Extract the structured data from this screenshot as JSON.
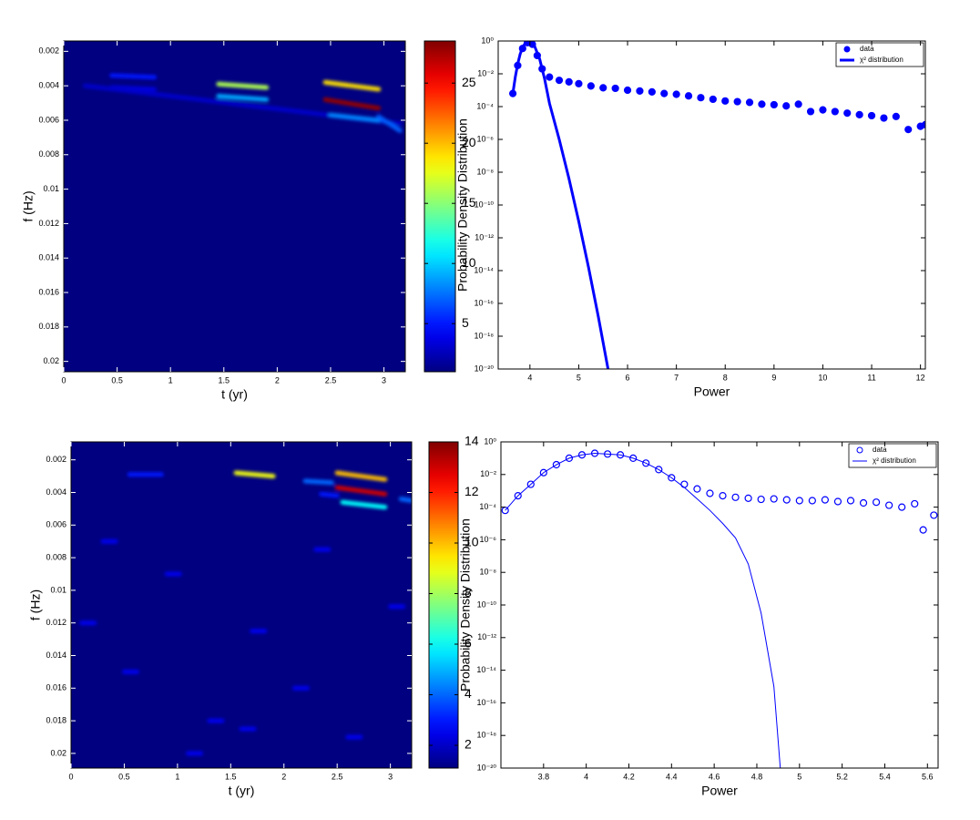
{
  "chart_data": [
    {
      "type": "heatmap",
      "xlabel": "t (yr)",
      "ylabel": "f (Hz)",
      "xlim": [
        0,
        3.2
      ],
      "xticks": [
        0,
        0.5,
        1,
        1.5,
        2,
        2.5,
        3
      ],
      "ylim": [
        0.0014,
        0.0206
      ],
      "y_reversed": true,
      "yticks": [
        0.002,
        0.004,
        0.006,
        0.008,
        0.01,
        0.012,
        0.014,
        0.016,
        0.018,
        0.02
      ],
      "colormap": "jet",
      "clim": [
        1,
        28.5
      ],
      "cticks": [
        5,
        10,
        15,
        20,
        25
      ],
      "streaks": [
        {
          "x": [
            0.45,
            0.85
          ],
          "y": [
            0.0034,
            0.0035
          ],
          "value": 5
        },
        {
          "x": [
            0.45,
            0.85
          ],
          "y": [
            0.0041,
            0.0042
          ],
          "value": 3.5
        },
        {
          "x": [
            0.2,
            3.15
          ],
          "y": [
            0.004,
            0.0062
          ],
          "value": 3
        },
        {
          "x": [
            1.45,
            1.9
          ],
          "y": [
            0.0039,
            0.0041
          ],
          "value": 16
        },
        {
          "x": [
            1.45,
            1.9
          ],
          "y": [
            0.0046,
            0.0048
          ],
          "value": 9
        },
        {
          "x": [
            2.45,
            2.95
          ],
          "y": [
            0.0038,
            0.0042
          ],
          "value": 19
        },
        {
          "x": [
            2.45,
            2.95
          ],
          "y": [
            0.0048,
            0.0053
          ],
          "value": 28
        },
        {
          "x": [
            2.5,
            2.95
          ],
          "y": [
            0.0057,
            0.006
          ],
          "value": 8
        },
        {
          "x": [
            2.95,
            3.15
          ],
          "y": [
            0.0058,
            0.0066
          ],
          "value": 7
        }
      ]
    },
    {
      "type": "line",
      "xlabel": "Power",
      "ylabel": "Probability Density Distribution",
      "xlim": [
        3.35,
        12.1
      ],
      "xticks": [
        4,
        5,
        6,
        7,
        8,
        9,
        10,
        11,
        12
      ],
      "log_y": true,
      "ylim": [
        1e-20,
        1
      ],
      "yticks": [
        {
          "value": 1,
          "label": "10⁰"
        },
        {
          "value": 0.01,
          "label": "10⁻²"
        },
        {
          "value": 0.0001,
          "label": "10⁻⁴"
        },
        {
          "value": 1e-06,
          "label": "10⁻⁶"
        },
        {
          "value": 1e-08,
          "label": "10⁻⁸"
        },
        {
          "value": 1e-10,
          "label": "10⁻¹⁰"
        },
        {
          "value": 1e-12,
          "label": "10⁻¹²"
        },
        {
          "value": 1e-14,
          "label": "10⁻¹⁴"
        },
        {
          "value": 1e-16,
          "label": "10⁻¹⁶"
        },
        {
          "value": 1e-18,
          "label": "10⁻¹⁸"
        },
        {
          "value": 1e-20,
          "label": "10⁻²⁰"
        }
      ],
      "legend": "upper right",
      "series": [
        {
          "name": "data",
          "color": "#0000ff",
          "marker": "filled-circle",
          "line_width": 0,
          "x": [
            3.65,
            3.75,
            3.85,
            3.95,
            4.0,
            4.05,
            4.15,
            4.25,
            4.4,
            4.6,
            4.8,
            5.0,
            5.25,
            5.5,
            5.75,
            6.0,
            6.25,
            6.5,
            6.75,
            7.0,
            7.25,
            7.5,
            7.75,
            8.0,
            8.25,
            8.5,
            8.75,
            9.0,
            9.25,
            9.5,
            9.75,
            10.0,
            10.25,
            10.5,
            10.75,
            11.0,
            11.25,
            11.5,
            11.75,
            12.0,
            12.1
          ],
          "values": [
            0.00063,
            0.032,
            0.35,
            0.79,
            0.89,
            0.63,
            0.13,
            0.02,
            0.0063,
            0.004,
            0.0032,
            0.0025,
            0.0018,
            0.0014,
            0.0013,
            0.001,
            0.00089,
            0.00079,
            0.00063,
            0.00056,
            0.00045,
            0.00035,
            0.00028,
            0.00022,
            0.0002,
            0.00018,
            0.00014,
            0.00013,
            0.00011,
            0.00014,
            5e-05,
            6.3e-05,
            5e-05,
            4e-05,
            3.2e-05,
            2.8e-05,
            2e-05,
            2.5e-05,
            4e-06,
            6.3e-06,
            7.9e-06
          ]
        },
        {
          "name": "χ² distribution",
          "color": "#0000ff",
          "marker": "none",
          "line_width": 3,
          "x": [
            3.65,
            3.7,
            3.75,
            3.8,
            3.85,
            3.9,
            3.95,
            4.0,
            4.05,
            4.1,
            4.2,
            4.3,
            4.4,
            4.6,
            4.8,
            5.0,
            5.2,
            5.4,
            5.6
          ],
          "values": [
            0.00063,
            0.0063,
            0.04,
            0.16,
            0.4,
            0.71,
            0.85,
            0.9,
            0.79,
            0.45,
            0.079,
            0.005,
            0.00016,
            1e-06,
            4e-09,
            1e-11,
            1.6e-14,
            1.6e-17,
            1e-20
          ]
        }
      ]
    },
    {
      "type": "heatmap",
      "xlabel": "t (yr)",
      "ylabel": "f (Hz)",
      "xlim": [
        0,
        3.2
      ],
      "xticks": [
        0,
        0.5,
        1,
        1.5,
        2,
        2.5,
        3
      ],
      "ylim": [
        0.0009,
        0.0209
      ],
      "y_reversed": true,
      "yticks": [
        0.002,
        0.004,
        0.006,
        0.008,
        0.01,
        0.012,
        0.014,
        0.016,
        0.018,
        0.02
      ],
      "colormap": "jet",
      "clim": [
        1.1,
        14
      ],
      "cticks": [
        2,
        4,
        6,
        8,
        10,
        12,
        14
      ],
      "streaks": [
        {
          "x": [
            0.55,
            0.85
          ],
          "y": [
            0.0029,
            0.0029
          ],
          "value": 3
        },
        {
          "x": [
            1.55,
            1.9
          ],
          "y": [
            0.0028,
            0.003
          ],
          "value": 9
        },
        {
          "x": [
            2.2,
            2.45
          ],
          "y": [
            0.0033,
            0.0034
          ],
          "value": 4
        },
        {
          "x": [
            2.35,
            2.5
          ],
          "y": [
            0.0041,
            0.0042
          ],
          "value": 3
        },
        {
          "x": [
            2.5,
            2.95
          ],
          "y": [
            0.0028,
            0.0032
          ],
          "value": 10
        },
        {
          "x": [
            2.5,
            2.95
          ],
          "y": [
            0.0037,
            0.0041
          ],
          "value": 13
        },
        {
          "x": [
            2.55,
            2.95
          ],
          "y": [
            0.0046,
            0.0049
          ],
          "value": 6
        },
        {
          "x": [
            3.1,
            3.2
          ],
          "y": [
            0.0044,
            0.0045
          ],
          "value": 4
        },
        {
          "x": [
            0.1,
            0.22
          ],
          "y": [
            0.012,
            0.012
          ],
          "value": 2.5
        },
        {
          "x": [
            0.5,
            0.62
          ],
          "y": [
            0.015,
            0.015
          ],
          "value": 2.5
        },
        {
          "x": [
            0.9,
            1.02
          ],
          "y": [
            0.009,
            0.009
          ],
          "value": 2.5
        },
        {
          "x": [
            1.3,
            1.42
          ],
          "y": [
            0.018,
            0.018
          ],
          "value": 2.5
        },
        {
          "x": [
            1.7,
            1.82
          ],
          "y": [
            0.0125,
            0.0125
          ],
          "value": 2.5
        },
        {
          "x": [
            2.1,
            2.22
          ],
          "y": [
            0.016,
            0.016
          ],
          "value": 2.5
        },
        {
          "x": [
            2.6,
            2.72
          ],
          "y": [
            0.019,
            0.019
          ],
          "value": 2.5
        },
        {
          "x": [
            3.0,
            3.12
          ],
          "y": [
            0.011,
            0.011
          ],
          "value": 2.5
        },
        {
          "x": [
            0.3,
            0.42
          ],
          "y": [
            0.007,
            0.007
          ],
          "value": 2.5
        },
        {
          "x": [
            1.1,
            1.22
          ],
          "y": [
            0.02,
            0.02
          ],
          "value": 2.5
        },
        {
          "x": [
            2.3,
            2.42
          ],
          "y": [
            0.0075,
            0.0075
          ],
          "value": 2.5
        },
        {
          "x": [
            1.6,
            1.72
          ],
          "y": [
            0.0185,
            0.0185
          ],
          "value": 2.5
        }
      ]
    },
    {
      "type": "line",
      "xlabel": "Power",
      "ylabel": "Probability Density Distribution",
      "xlim": [
        3.6,
        5.65
      ],
      "xticks": [
        3.8,
        4,
        4.2,
        4.4,
        4.6,
        4.8,
        5,
        5.2,
        5.4,
        5.6
      ],
      "log_y": true,
      "ylim": [
        1e-20,
        1
      ],
      "yticks": [
        {
          "value": 1,
          "label": "10⁰"
        },
        {
          "value": 0.01,
          "label": "10⁻²"
        },
        {
          "value": 0.0001,
          "label": "10⁻⁴"
        },
        {
          "value": 1e-06,
          "label": "10⁻⁶"
        },
        {
          "value": 1e-08,
          "label": "10⁻⁸"
        },
        {
          "value": 1e-10,
          "label": "10⁻¹⁰"
        },
        {
          "value": 1e-12,
          "label": "10⁻¹²"
        },
        {
          "value": 1e-14,
          "label": "10⁻¹⁴"
        },
        {
          "value": 1e-16,
          "label": "10⁻¹⁶"
        },
        {
          "value": 1e-18,
          "label": "10⁻¹⁸"
        },
        {
          "value": 1e-20,
          "label": "10⁻²⁰"
        }
      ],
      "legend": "upper right",
      "series": [
        {
          "name": "data",
          "color": "#0000ff",
          "marker": "open-circle",
          "line_width": 0,
          "x": [
            3.62,
            3.68,
            3.74,
            3.8,
            3.86,
            3.92,
            3.98,
            4.04,
            4.1,
            4.16,
            4.22,
            4.28,
            4.34,
            4.4,
            4.46,
            4.52,
            4.58,
            4.64,
            4.7,
            4.76,
            4.82,
            4.88,
            4.94,
            5.0,
            5.06,
            5.12,
            5.18,
            5.24,
            5.3,
            5.36,
            5.42,
            5.48,
            5.54,
            5.58,
            5.63
          ],
          "values": [
            6.3e-05,
            0.0005,
            0.0025,
            0.013,
            0.04,
            0.1,
            0.16,
            0.2,
            0.18,
            0.16,
            0.1,
            0.05,
            0.02,
            0.0063,
            0.0025,
            0.0013,
            0.0007,
            0.0005,
            0.0004,
            0.00035,
            0.0003,
            0.00032,
            0.00028,
            0.00025,
            0.00025,
            0.00028,
            0.00022,
            0.00025,
            0.00018,
            0.0002,
            0.00013,
            0.0001,
            0.00016,
            4e-06,
            3.2e-05
          ]
        },
        {
          "name": "χ² distribution",
          "color": "#0000ff",
          "marker": "none",
          "line_width": 1,
          "x": [
            3.62,
            3.68,
            3.74,
            3.8,
            3.86,
            3.92,
            3.98,
            4.04,
            4.1,
            4.16,
            4.22,
            4.28,
            4.34,
            4.4,
            4.46,
            4.52,
            4.58,
            4.64,
            4.7,
            4.76,
            4.82,
            4.88,
            4.91
          ],
          "values": [
            6.3e-05,
            0.0005,
            0.0025,
            0.013,
            0.04,
            0.1,
            0.16,
            0.2,
            0.18,
            0.16,
            0.1,
            0.05,
            0.02,
            0.0063,
            0.0016,
            0.00032,
            6.3e-05,
            1e-05,
            1.3e-06,
            3.2e-08,
            3.2e-11,
            1e-15,
            1e-20
          ]
        }
      ]
    }
  ]
}
